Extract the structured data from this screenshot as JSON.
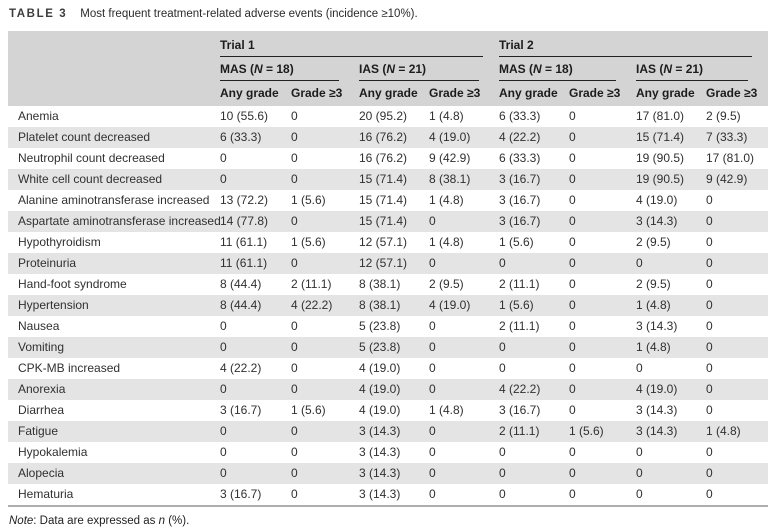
{
  "page": {
    "title_label": "TABLE 3",
    "title_text": "Most frequent treatment-related adverse events (incidence ≥10%)."
  },
  "table": {
    "trials": [
      {
        "label": "Trial 1"
      },
      {
        "label": "Trial 2"
      }
    ],
    "groups": [
      {
        "pre": "MAS (",
        "n": "N",
        "post": " = 18)"
      },
      {
        "pre": "IAS (",
        "n": "N",
        "post": " = 21)"
      },
      {
        "pre": "MAS (",
        "n": "N",
        "post": " = 18)"
      },
      {
        "pre": "IAS (",
        "n": "N",
        "post": " = 21)"
      }
    ],
    "subheaders": {
      "any_grade": "Any grade",
      "grade_ge3": "Grade ≥3"
    },
    "rows": [
      {
        "label": "Anemia",
        "values": [
          "10 (55.6)",
          "0",
          "20 (95.2)",
          "1 (4.8)",
          "6 (33.3)",
          "0",
          "17 (81.0)",
          "2 (9.5)"
        ]
      },
      {
        "label": "Platelet count decreased",
        "values": [
          "6 (33.3)",
          "0",
          "16 (76.2)",
          "4 (19.0)",
          "4 (22.2)",
          "0",
          "15 (71.4)",
          "7 (33.3)"
        ]
      },
      {
        "label": "Neutrophil count decreased",
        "values": [
          "0",
          "0",
          "16 (76.2)",
          "9 (42.9)",
          "6 (33.3)",
          "0",
          "19 (90.5)",
          "17 (81.0)"
        ]
      },
      {
        "label": "White cell count decreased",
        "values": [
          "0",
          "0",
          "15 (71.4)",
          "8 (38.1)",
          "3 (16.7)",
          "0",
          "19 (90.5)",
          "9 (42.9)"
        ]
      },
      {
        "label": "Alanine aminotransferase increased",
        "values": [
          "13 (72.2)",
          "1 (5.6)",
          "15 (71.4)",
          "1 (4.8)",
          "3 (16.7)",
          "0",
          "4 (19.0)",
          "0"
        ]
      },
      {
        "label": "Aspartate aminotransferase increased",
        "values": [
          "14 (77.8)",
          "0",
          "15 (71.4)",
          "0",
          "3 (16.7)",
          "0",
          "3 (14.3)",
          "0"
        ]
      },
      {
        "label": "Hypothyroidism",
        "values": [
          "11 (61.1)",
          "1 (5.6)",
          "12 (57.1)",
          "1 (4.8)",
          "1 (5.6)",
          "0",
          "2 (9.5)",
          "0"
        ]
      },
      {
        "label": "Proteinuria",
        "values": [
          "11 (61.1)",
          "0",
          "12 (57.1)",
          "0",
          "0",
          "0",
          "0",
          "0"
        ]
      },
      {
        "label": "Hand-foot syndrome",
        "values": [
          "8 (44.4)",
          "2 (11.1)",
          "8 (38.1)",
          "2 (9.5)",
          "2 (11.1)",
          "0",
          "2 (9.5)",
          "0"
        ]
      },
      {
        "label": "Hypertension",
        "values": [
          "8 (44.4)",
          "4 (22.2)",
          "8 (38.1)",
          "4 (19.0)",
          "1 (5.6)",
          "0",
          "1 (4.8)",
          "0"
        ]
      },
      {
        "label": "Nausea",
        "values": [
          "0",
          "0",
          "5 (23.8)",
          "0",
          "2 (11.1)",
          "0",
          "3 (14.3)",
          "0"
        ]
      },
      {
        "label": "Vomiting",
        "values": [
          "0",
          "0",
          "5 (23.8)",
          "0",
          "0",
          "0",
          "1 (4.8)",
          "0"
        ]
      },
      {
        "label": "CPK-MB increased",
        "values": [
          "4 (22.2)",
          "0",
          "4 (19.0)",
          "0",
          "0",
          "0",
          "0",
          "0"
        ]
      },
      {
        "label": "Anorexia",
        "values": [
          "0",
          "0",
          "4 (19.0)",
          "0",
          "4 (22.2)",
          "0",
          "4 (19.0)",
          "0"
        ]
      },
      {
        "label": "Diarrhea",
        "values": [
          "3 (16.7)",
          "1 (5.6)",
          "4 (19.0)",
          "1 (4.8)",
          "3 (16.7)",
          "0",
          "3 (14.3)",
          "0"
        ]
      },
      {
        "label": "Fatigue",
        "values": [
          "0",
          "0",
          "3 (14.3)",
          "0",
          "2 (11.1)",
          "1 (5.6)",
          "3 (14.3)",
          "1 (4.8)"
        ]
      },
      {
        "label": "Hypokalemia",
        "values": [
          "0",
          "0",
          "3 (14.3)",
          "0",
          "0",
          "0",
          "0",
          "0"
        ]
      },
      {
        "label": "Alopecia",
        "values": [
          "0",
          "0",
          "3 (14.3)",
          "0",
          "0",
          "0",
          "0",
          "0"
        ]
      },
      {
        "label": "Hematuria",
        "values": [
          "3 (16.7)",
          "0",
          "3 (14.3)",
          "0",
          "0",
          "0",
          "0",
          "0"
        ]
      }
    ]
  },
  "note": {
    "italic_lead": "Note",
    "text": ": Data are expressed as ",
    "italic_n": "n",
    "tail": " (%)."
  },
  "colors": {
    "header_gray": "#d4d4d4",
    "stripe_gray": "#e4e4e4",
    "rule_dark": "#222222",
    "table_bottom_border": "#aeaeae"
  }
}
